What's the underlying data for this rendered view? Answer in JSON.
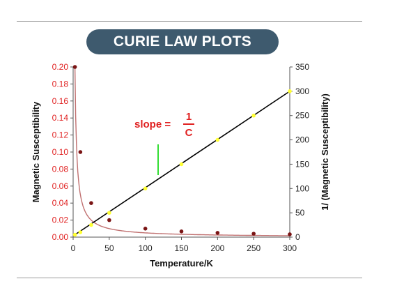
{
  "title": "CURIE LAW PLOTS",
  "chart_data": {
    "type": "line",
    "xlabel": "Temperature/K",
    "ylabel_left": "Magnetic Susceptibility",
    "ylabel_right": "1/ (Magnetic Susceptibility)",
    "xlim": [
      0,
      300
    ],
    "ylim_left": [
      0,
      0.2
    ],
    "ylim_right": [
      0,
      350
    ],
    "x_ticks": [
      "0",
      "50",
      "100",
      "150",
      "200",
      "250",
      "300"
    ],
    "y_left_ticks": [
      "0.00",
      "0.02",
      "0.04",
      "0.06",
      "0.08",
      "0.10",
      "0.12",
      "0.14",
      "0.16",
      "0.18",
      "0.20"
    ],
    "y_right_ticks": [
      "0",
      "50",
      "100",
      "150",
      "200",
      "250",
      "300",
      "350"
    ],
    "grid": false,
    "annotation": {
      "slope_word": "slope  =",
      "numerator": "1",
      "denominator": "C"
    },
    "series": [
      {
        "axis": "left",
        "color": "#7a1414",
        "line_color": "#c07070",
        "points": [
          [
            2.5,
            0.2
          ],
          [
            10,
            0.1
          ],
          [
            25,
            0.04
          ],
          [
            50,
            0.02
          ],
          [
            100,
            0.01
          ],
          [
            150,
            0.0067
          ],
          [
            200,
            0.005
          ],
          [
            250,
            0.004
          ],
          [
            300,
            0.0033
          ]
        ]
      },
      {
        "axis": "right",
        "color": "#ffff33",
        "line_color": "#000000",
        "points": [
          [
            2.5,
            5
          ],
          [
            10,
            10
          ],
          [
            25,
            25
          ],
          [
            50,
            50
          ],
          [
            100,
            100
          ],
          [
            150,
            150
          ],
          [
            200,
            200
          ],
          [
            250,
            250
          ],
          [
            300,
            300
          ]
        ]
      }
    ]
  }
}
